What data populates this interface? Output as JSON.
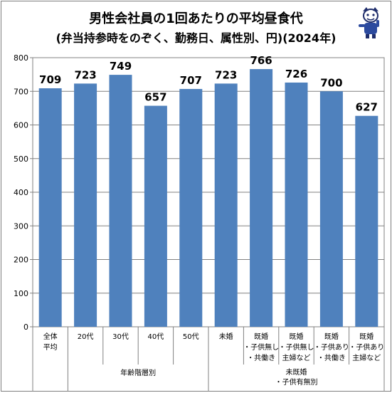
{
  "chart_data": {
    "type": "bar",
    "title": "男性会社員の1回あたりの平均昼食代",
    "subtitle": "(弁当持参時をのぞく、勤務日、属性別、円)(2024年)",
    "categories": [
      [
        "全体",
        "平均"
      ],
      [
        "20代"
      ],
      [
        "30代"
      ],
      [
        "40代"
      ],
      [
        "50代"
      ],
      [
        "未婚"
      ],
      [
        "既婚",
        "・子供無し",
        "・共働き"
      ],
      [
        "既婚",
        "・子供無し",
        "主婦など"
      ],
      [
        "既婚",
        "・子供あり",
        "・共働き"
      ],
      [
        "既婚",
        "・子供あり",
        "主婦など"
      ]
    ],
    "values": [
      709,
      723,
      749,
      657,
      707,
      723,
      766,
      726,
      700,
      627
    ],
    "ylim": [
      0,
      800
    ],
    "yticks": [
      0,
      100,
      200,
      300,
      400,
      500,
      600,
      700,
      800
    ],
    "grid": true,
    "bar_color": "#4f81bd",
    "groups": [
      {
        "label": "年齢階層別",
        "from": 1,
        "to": 4
      },
      {
        "label": "未既婚\n・子供有無別",
        "from": 5,
        "to": 9
      }
    ]
  }
}
